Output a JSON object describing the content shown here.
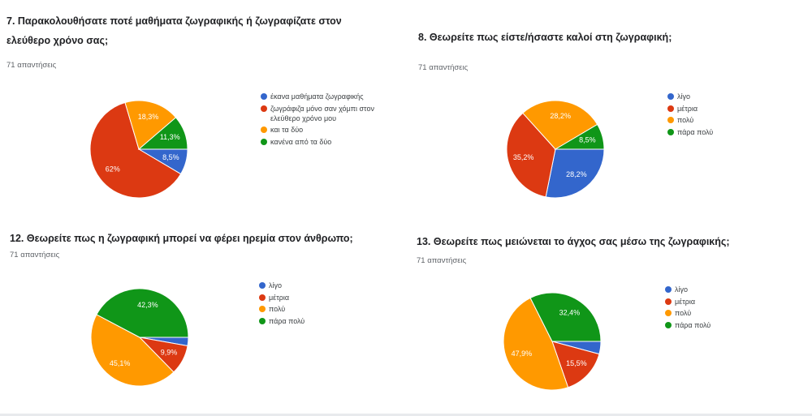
{
  "charts": [
    {
      "title": [
        "7. Παρακολουθήσατε ποτέ μαθήματα ζωγραφικής ή ζωγραφίζατε στον",
        "ελεύθερο χρόνο σας;"
      ],
      "responses": "71 απαντήσεις",
      "legend": [
        [
          "έκανα μαθήματα ζωγραφικής"
        ],
        [
          "ζωγράφιζα μόνο σαν χόμπι στον",
          "ελεύθερο χρόνο μου"
        ],
        [
          "και τα δύο"
        ],
        [
          "κανένα από τα δύο"
        ]
      ]
    },
    {
      "title": [
        "8. Θεωρείτε πως είστε/ήσαστε καλοί στη ζωγραφική;"
      ],
      "responses": "71 απαντήσεις",
      "legend": [
        [
          "λίγο"
        ],
        [
          "μέτρια"
        ],
        [
          "πολύ"
        ],
        [
          "πάρα πολύ"
        ]
      ]
    },
    {
      "title": [
        "12. Θεωρείτε πως η ζωγραφική μπορεί να φέρει ηρεμία στον άνθρωπο;"
      ],
      "responses": "71 απαντήσεις",
      "legend": [
        [
          "λίγο"
        ],
        [
          "μέτρια"
        ],
        [
          "πολύ"
        ],
        [
          "πάρα πολύ"
        ]
      ]
    },
    {
      "title": [
        "13. Θεωρείτε πως μειώνεται το άγχος σας μέσω της ζωγραφικής;"
      ],
      "responses": "71 απαντήσεις",
      "legend": [
        [
          "λίγο"
        ],
        [
          "μέτρια"
        ],
        [
          "πολύ"
        ],
        [
          "πάρα πολύ"
        ]
      ]
    }
  ],
  "colors": [
    "#3366cc",
    "#dc3912",
    "#ff9900",
    "#109618"
  ],
  "chart_data": [
    {
      "type": "pie",
      "title": "7. Παρακολουθήσατε ποτέ μαθήματα ζωγραφικής ή ζωγραφίζατε στον ελεύθερο χρόνο σας;",
      "categories": [
        "έκανα μαθήματα ζωγραφικής",
        "ζωγράφιζα μόνο σαν χόμπι στον ελεύθερο χρόνο μου",
        "και τα δύο",
        "κανένα από τα δύο"
      ],
      "values": [
        8.5,
        62,
        18.3,
        11.3
      ],
      "labels": [
        "8,5%",
        "62%",
        "18,3%",
        "11,3%"
      ],
      "legend_position": "right"
    },
    {
      "type": "pie",
      "title": "8. Θεωρείτε πως είστε/ήσαστε καλοί στη ζωγραφική;",
      "categories": [
        "λίγο",
        "μέτρια",
        "πολύ",
        "πάρα πολύ"
      ],
      "values": [
        28.2,
        35.2,
        28.2,
        8.5
      ],
      "labels": [
        "28,2%",
        "35,2%",
        "28,2%",
        "8,5%"
      ],
      "legend_position": "right"
    },
    {
      "type": "pie",
      "title": "12. Θεωρείτε πως η ζωγραφική μπορεί να φέρει ηρεμία στον άνθρωπο;",
      "categories": [
        "λίγο",
        "μέτρια",
        "πολύ",
        "πάρα πολύ"
      ],
      "values": [
        2.8,
        9.9,
        45.1,
        42.3
      ],
      "labels": [
        "",
        "9,9%",
        "45,1%",
        "42,3%"
      ],
      "legend_position": "right"
    },
    {
      "type": "pie",
      "title": "13. Θεωρείτε πως μειώνεται το άγχος σας μέσω της ζωγραφικής;",
      "categories": [
        "λίγο",
        "μέτρια",
        "πολύ",
        "πάρα πολύ"
      ],
      "values": [
        4.2,
        15.5,
        47.9,
        32.4
      ],
      "labels": [
        "",
        "15,5%",
        "47,9%",
        "32,4%"
      ],
      "legend_position": "right"
    }
  ]
}
